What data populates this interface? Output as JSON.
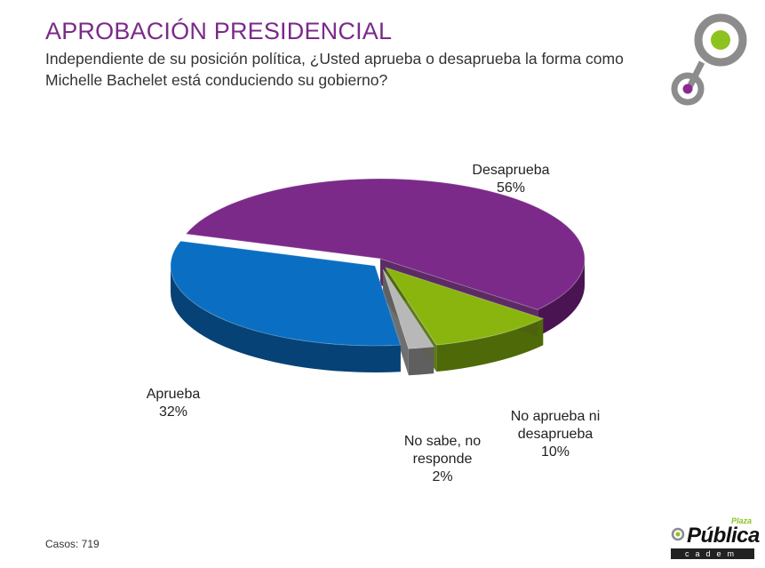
{
  "title": "APROBACIÓN PRESIDENCIAL",
  "subtitle": "Independiente de su posición política, ¿Usted aprueba o desaprueba la forma como Michelle Bachelet está conduciendo su gobierno?",
  "footer": {
    "cases": "Casos: 719"
  },
  "brand": {
    "word": "Pública",
    "small": "Plaza",
    "bar": "cadem"
  },
  "colors": {
    "title": "#7b2a8a",
    "desaprueba": "#7b2a8a",
    "aprueba": "#0a6fc2",
    "ni": "#8ab50f",
    "nosabe": "#b8b8b8",
    "brand_green": "#8dc21f",
    "brand_gray": "#8c8c8c"
  },
  "chart_data": {
    "type": "pie",
    "title": "",
    "series": [
      {
        "name": "Desaprueba",
        "value": 56,
        "label": "56%"
      },
      {
        "name": "No aprueba ni desaprueba",
        "value": 10,
        "label": "10%"
      },
      {
        "name": "No sabe, no responde",
        "value": 2,
        "label": "2%"
      },
      {
        "name": "Aprueba",
        "value": 32,
        "label": "32%"
      }
    ]
  }
}
